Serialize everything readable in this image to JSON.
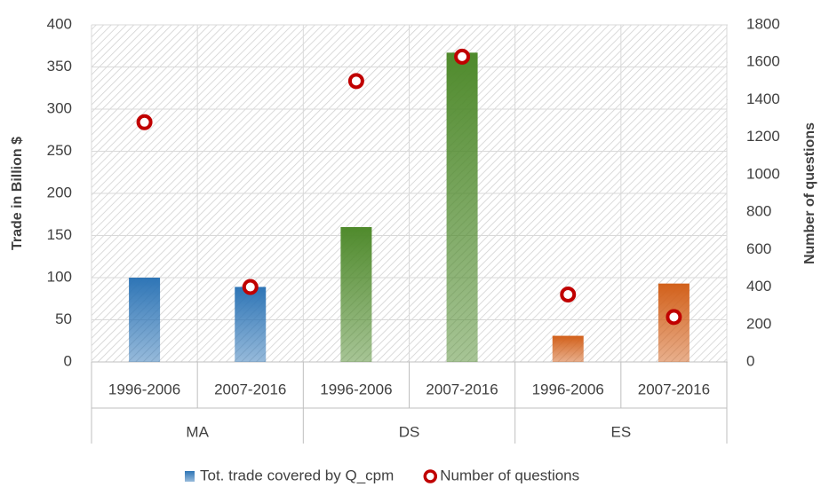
{
  "chart_data": {
    "type": "bar",
    "categories": [
      "1996-2006",
      "2007-2016",
      "1996-2006",
      "2007-2016",
      "1996-2006",
      "2007-2016"
    ],
    "groups": [
      "MA",
      "DS",
      "ES"
    ],
    "ylabel": "Trade in Billion $",
    "y2label": "Number of questions",
    "ylim": [
      0,
      400
    ],
    "yticks": [
      0,
      50,
      100,
      150,
      200,
      250,
      300,
      350,
      400
    ],
    "y2lim": [
      0,
      1800
    ],
    "y2ticks": [
      0,
      200,
      400,
      600,
      800,
      1000,
      1200,
      1400,
      1600,
      1800
    ],
    "grid": true,
    "legend": "bottom",
    "series": [
      {
        "name": "Tot. trade covered by Q_cpm",
        "type": "bar",
        "color": "#2e75b6",
        "colors": [
          "#2e75b6",
          "#2e75b6",
          "#4f8a2c",
          "#4f8a2c",
          "#d2601a",
          "#d2601a"
        ],
        "values": [
          100,
          89,
          160,
          367,
          31,
          93
        ]
      },
      {
        "name": "Number of questions",
        "type": "scatter",
        "axis": "y2",
        "color": "#c00000",
        "values": [
          1280,
          400,
          1500,
          1630,
          360,
          240
        ]
      }
    ]
  }
}
